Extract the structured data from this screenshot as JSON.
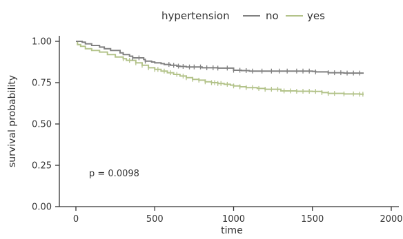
{
  "chart_data": {
    "type": "line",
    "title": "",
    "xlabel": "time",
    "ylabel": "survival probability",
    "xlim": [
      -100,
      2050
    ],
    "ylim": [
      0,
      1.05
    ],
    "x_ticks": [
      0,
      500,
      1000,
      1500,
      2000
    ],
    "y_ticks": [
      0.0,
      0.25,
      0.5,
      0.75,
      1.0
    ],
    "x_tick_labels": [
      "0",
      "500",
      "1000",
      "1500",
      "2000"
    ],
    "y_tick_labels": [
      "0.00",
      "0.25",
      "0.50",
      "0.75",
      "1.00"
    ],
    "legend": {
      "title": "hypertension",
      "placement": "top",
      "entries": [
        "no",
        "yes"
      ]
    },
    "annotation": "p = 0.0098",
    "grid": false,
    "series": [
      {
        "name": "no",
        "color": "#808080",
        "x": [
          0,
          40,
          60,
          100,
          150,
          180,
          220,
          280,
          300,
          340,
          360,
          430,
          440,
          480,
          500,
          540,
          560,
          600,
          640,
          660,
          700,
          800,
          900,
          1000,
          1050,
          1100,
          1200,
          1300,
          1400,
          1500,
          1520,
          1600,
          1700,
          1800,
          1825
        ],
        "y": [
          1.0,
          0.995,
          0.985,
          0.975,
          0.965,
          0.955,
          0.945,
          0.93,
          0.92,
          0.91,
          0.9,
          0.89,
          0.88,
          0.875,
          0.87,
          0.865,
          0.86,
          0.855,
          0.85,
          0.848,
          0.845,
          0.84,
          0.838,
          0.825,
          0.823,
          0.82,
          0.82,
          0.82,
          0.82,
          0.818,
          0.815,
          0.81,
          0.808,
          0.808,
          0.808
        ],
        "censor_x": [
          360,
          400,
          440,
          590,
          620,
          650,
          680,
          720,
          750,
          790,
          830,
          870,
          900,
          960,
          1000,
          1040,
          1080,
          1120,
          1180,
          1240,
          1290,
          1340,
          1400,
          1440,
          1480,
          1520,
          1600,
          1640,
          1680,
          1720,
          1760,
          1800
        ]
      },
      {
        "name": "yes",
        "color": "#b3c38a",
        "x": [
          0,
          10,
          30,
          60,
          100,
          150,
          200,
          250,
          300,
          320,
          380,
          420,
          460,
          500,
          540,
          580,
          620,
          660,
          700,
          740,
          780,
          820,
          860,
          900,
          940,
          980,
          1000,
          1040,
          1080,
          1150,
          1200,
          1300,
          1400,
          1500,
          1560,
          1600,
          1700,
          1800,
          1825
        ],
        "y": [
          1.0,
          0.98,
          0.97,
          0.955,
          0.945,
          0.935,
          0.92,
          0.905,
          0.895,
          0.885,
          0.87,
          0.855,
          0.84,
          0.83,
          0.82,
          0.81,
          0.8,
          0.79,
          0.78,
          0.77,
          0.765,
          0.755,
          0.75,
          0.745,
          0.74,
          0.735,
          0.73,
          0.725,
          0.72,
          0.715,
          0.71,
          0.7,
          0.698,
          0.697,
          0.69,
          0.685,
          0.682,
          0.68,
          0.68
        ],
        "censor_x": [
          300,
          340,
          380,
          420,
          460,
          500,
          520,
          560,
          600,
          640,
          680,
          700,
          740,
          780,
          820,
          860,
          880,
          900,
          920,
          960,
          1000,
          1040,
          1080,
          1120,
          1160,
          1200,
          1240,
          1280,
          1320,
          1360,
          1400,
          1440,
          1480,
          1520,
          1560,
          1600,
          1640,
          1700,
          1760,
          1800,
          1820
        ]
      }
    ]
  }
}
